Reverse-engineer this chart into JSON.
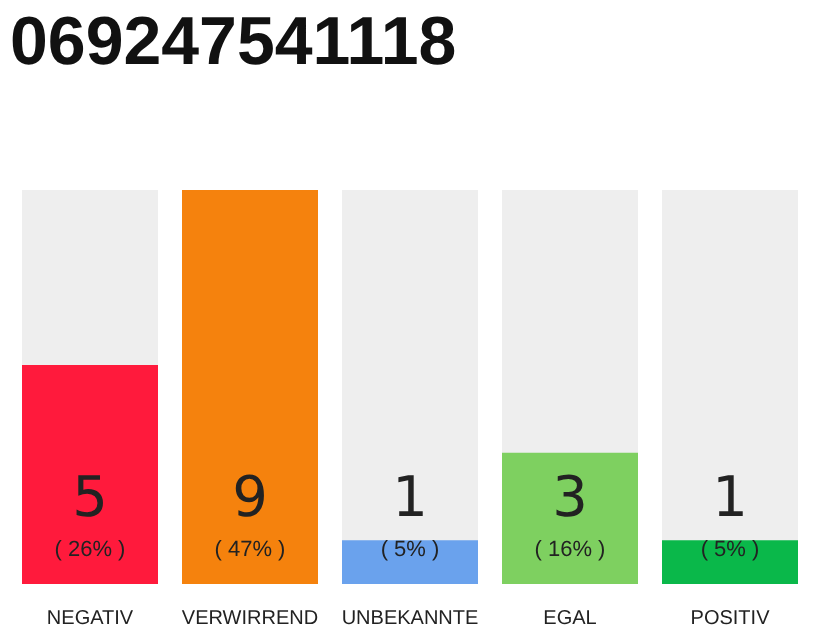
{
  "chart_data": {
    "type": "bar",
    "title": "069247541118",
    "categories": [
      "NEGATIV",
      "VERWIRREND",
      "UNBEKANNTE",
      "EGAL",
      "POSITIV"
    ],
    "values": [
      5,
      9,
      1,
      3,
      1
    ],
    "colors": [
      "#ff1a3c",
      "#f5820d",
      "#6aa2ed",
      "#7ed060",
      "#0ab84a"
    ],
    "ylim": [
      0,
      9
    ],
    "tick_labels": "x",
    "data_labels": true,
    "grid": false,
    "legend": false,
    "annotations": [
      "( 26% )",
      "( 47% )",
      "( 5% )",
      "( 16% )",
      "( 5% )"
    ]
  }
}
